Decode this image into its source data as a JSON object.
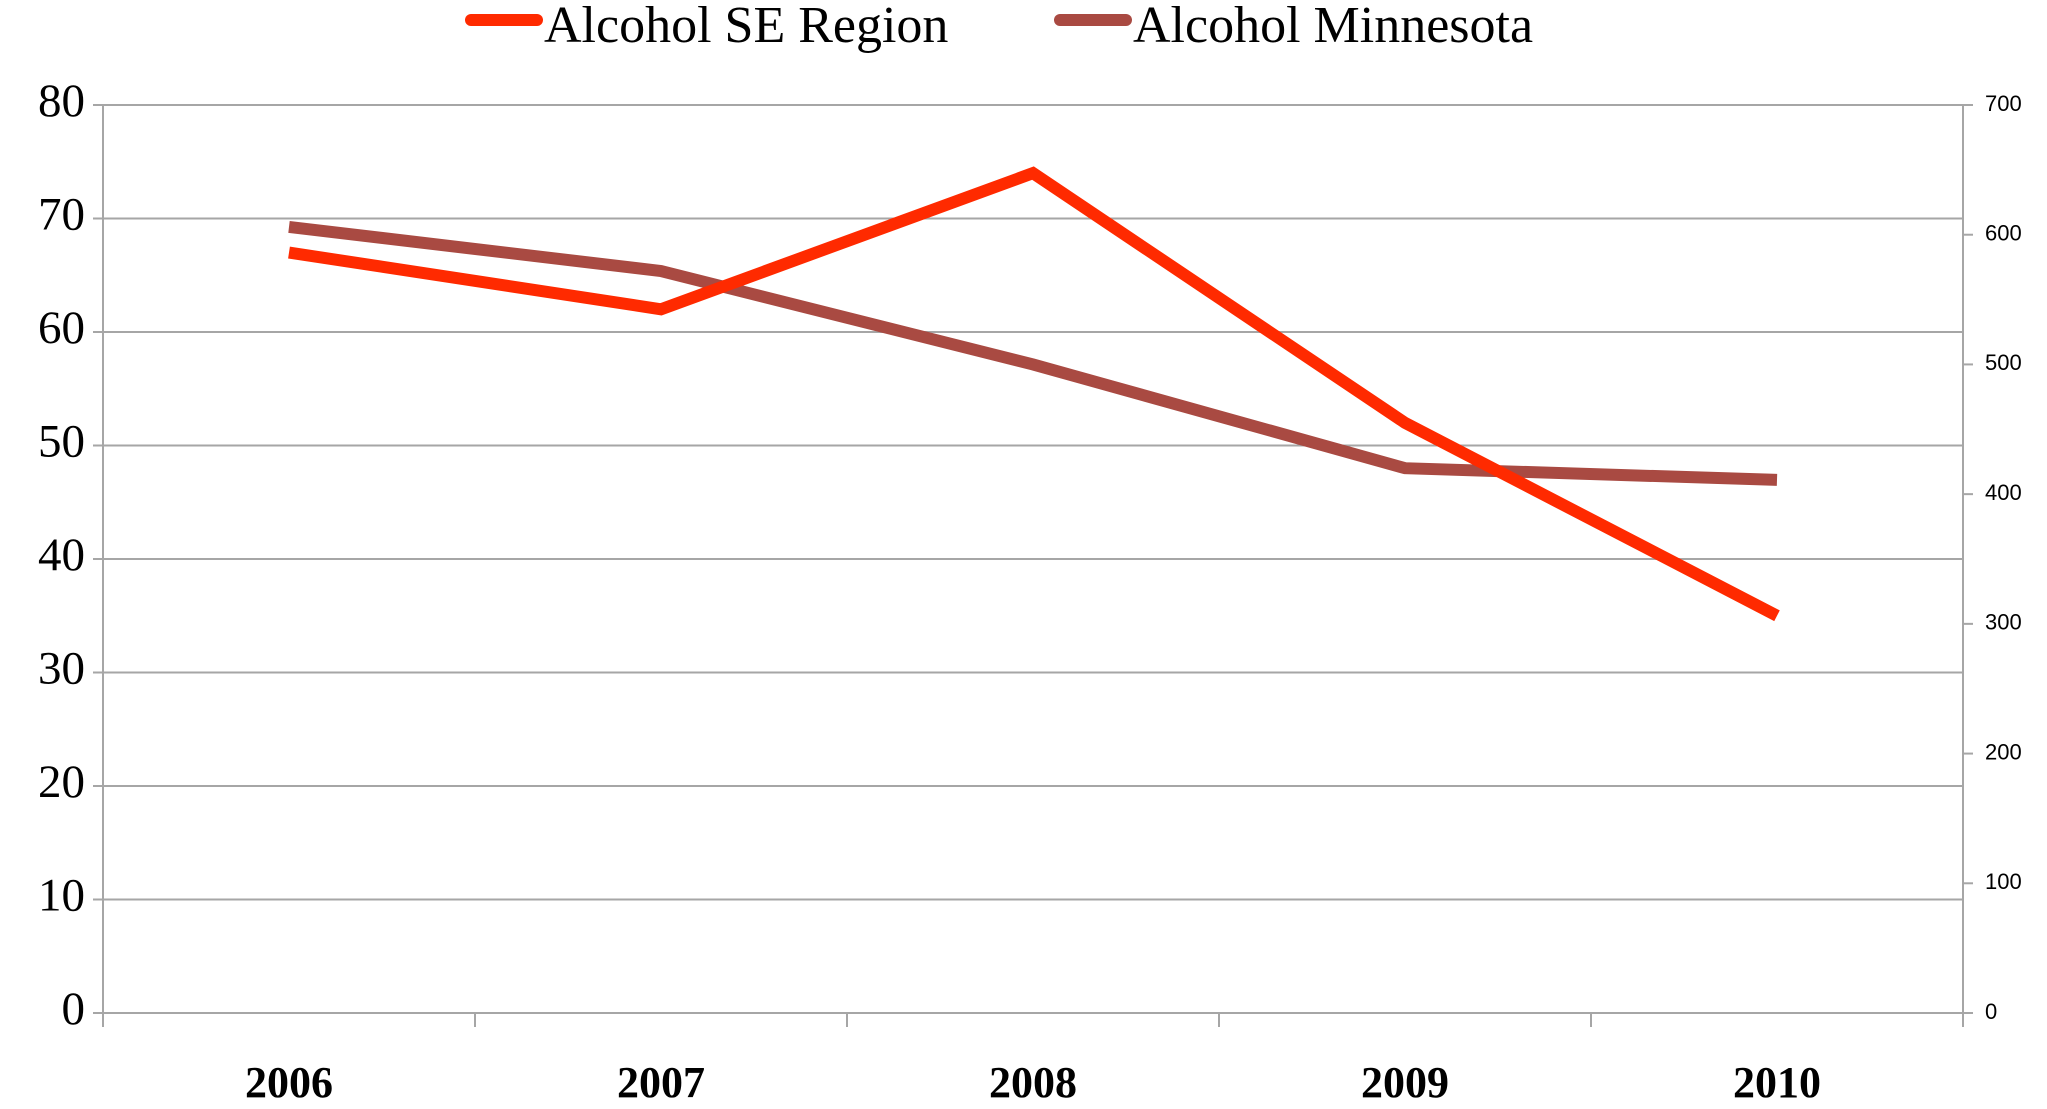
{
  "chart_data": {
    "type": "line",
    "categories": [
      "2006",
      "2007",
      "2008",
      "2009",
      "2010"
    ],
    "series": [
      {
        "name": "Alcohol SE Region",
        "color": "#ff2a00",
        "values": [
          67,
          62,
          74,
          52,
          35
        ]
      },
      {
        "name": "Alcohol Minnesota",
        "color": "#a94a42",
        "axis": "y2",
        "values": [
          606,
          572,
          500,
          420,
          411
        ]
      }
    ],
    "ylim": [
      0,
      80
    ],
    "yticks": [
      0,
      10,
      20,
      30,
      40,
      50,
      60,
      70,
      80
    ],
    "y2lim": [
      0,
      700
    ],
    "y2ticks": [
      0,
      100,
      200,
      300,
      400,
      500,
      600,
      700
    ],
    "grid": true,
    "legend": "top"
  }
}
